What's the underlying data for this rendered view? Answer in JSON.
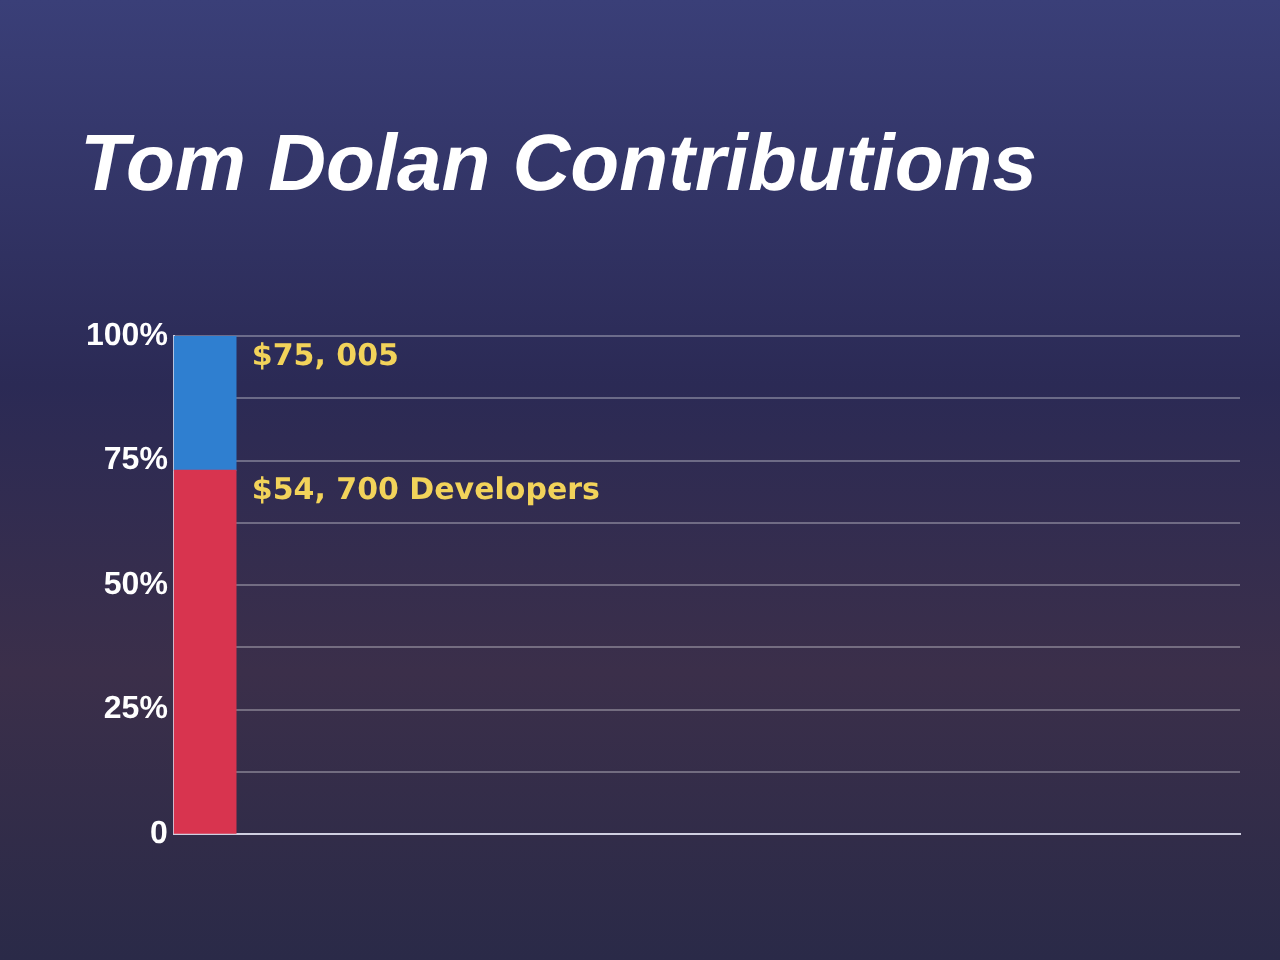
{
  "chart_data": {
    "type": "bar",
    "title": "Tom Dolan Contributions",
    "categories": [
      null
    ],
    "stacked": true,
    "series": [
      {
        "color": "#d8344f",
        "values": [
          73
        ]
      },
      {
        "color": "#2f7fd0",
        "values": [
          27
        ]
      }
    ],
    "ylim": [
      0,
      100
    ],
    "yticks": [
      {
        "value": 0,
        "label": "0"
      },
      {
        "value": 12.5,
        "label": null
      },
      {
        "value": 25,
        "label": "25%"
      },
      {
        "value": 37.5,
        "label": null
      },
      {
        "value": 50,
        "label": "50%"
      },
      {
        "value": 62.5,
        "label": null
      },
      {
        "value": 75,
        "label": "75%"
      },
      {
        "value": 87.5,
        "label": null
      },
      {
        "value": 100,
        "label": "100%"
      }
    ],
    "grid": "y",
    "legend": false,
    "tick_labels": "y",
    "annotations": [
      "$75, 005",
      "$54, 700 Developers"
    ]
  }
}
